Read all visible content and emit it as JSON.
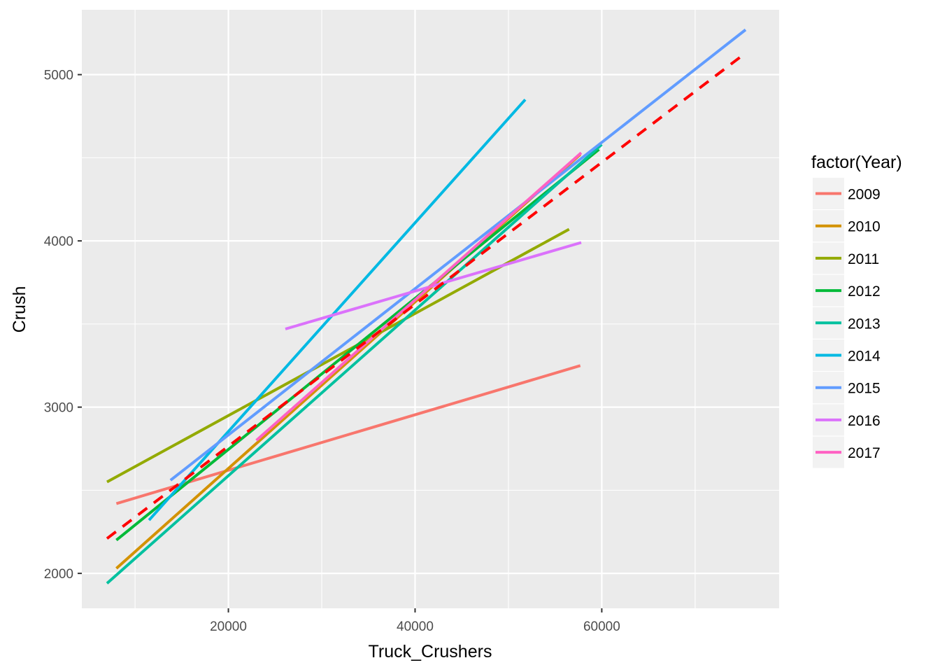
{
  "chart_data": {
    "type": "line",
    "xlabel": "Truck_Crushers",
    "ylabel": "Crush",
    "xlim": [
      4300,
      79000
    ],
    "ylim": [
      1790,
      5390
    ],
    "x_ticks": [
      20000,
      40000,
      60000
    ],
    "y_ticks": [
      2000,
      3000,
      4000,
      5000
    ],
    "grid": true,
    "legend": {
      "title": "factor(Year)",
      "position": "right"
    },
    "series": [
      {
        "name": "2009",
        "color": "#F8766D",
        "x": [
          8000,
          57700
        ],
        "y": [
          2420,
          3250
        ]
      },
      {
        "name": "2010",
        "color": "#D39200",
        "x": [
          8000,
          57700
        ],
        "y": [
          2030,
          4520
        ]
      },
      {
        "name": "2011",
        "color": "#93AA00",
        "x": [
          7000,
          56500
        ],
        "y": [
          2550,
          4070
        ]
      },
      {
        "name": "2012",
        "color": "#00BA38",
        "x": [
          8000,
          59700
        ],
        "y": [
          2200,
          4550
        ]
      },
      {
        "name": "2013",
        "color": "#00C19F",
        "x": [
          7000,
          60000
        ],
        "y": [
          1940,
          4580
        ]
      },
      {
        "name": "2014",
        "color": "#00B9E3",
        "x": [
          11500,
          51800
        ],
        "y": [
          2320,
          4850
        ]
      },
      {
        "name": "2015",
        "color": "#619CFF",
        "x": [
          13800,
          75400
        ],
        "y": [
          2560,
          5270
        ]
      },
      {
        "name": "2016",
        "color": "#DB72FB",
        "x": [
          26100,
          57800
        ],
        "y": [
          3470,
          3990
        ]
      },
      {
        "name": "2017",
        "color": "#FF61C3",
        "x": [
          23000,
          57800
        ],
        "y": [
          2800,
          4530
        ]
      }
    ],
    "overall_trend": {
      "color": "#FF0000",
      "style": "dashed",
      "x": [
        7000,
        75400
      ],
      "y": [
        2210,
        5130
      ]
    }
  }
}
